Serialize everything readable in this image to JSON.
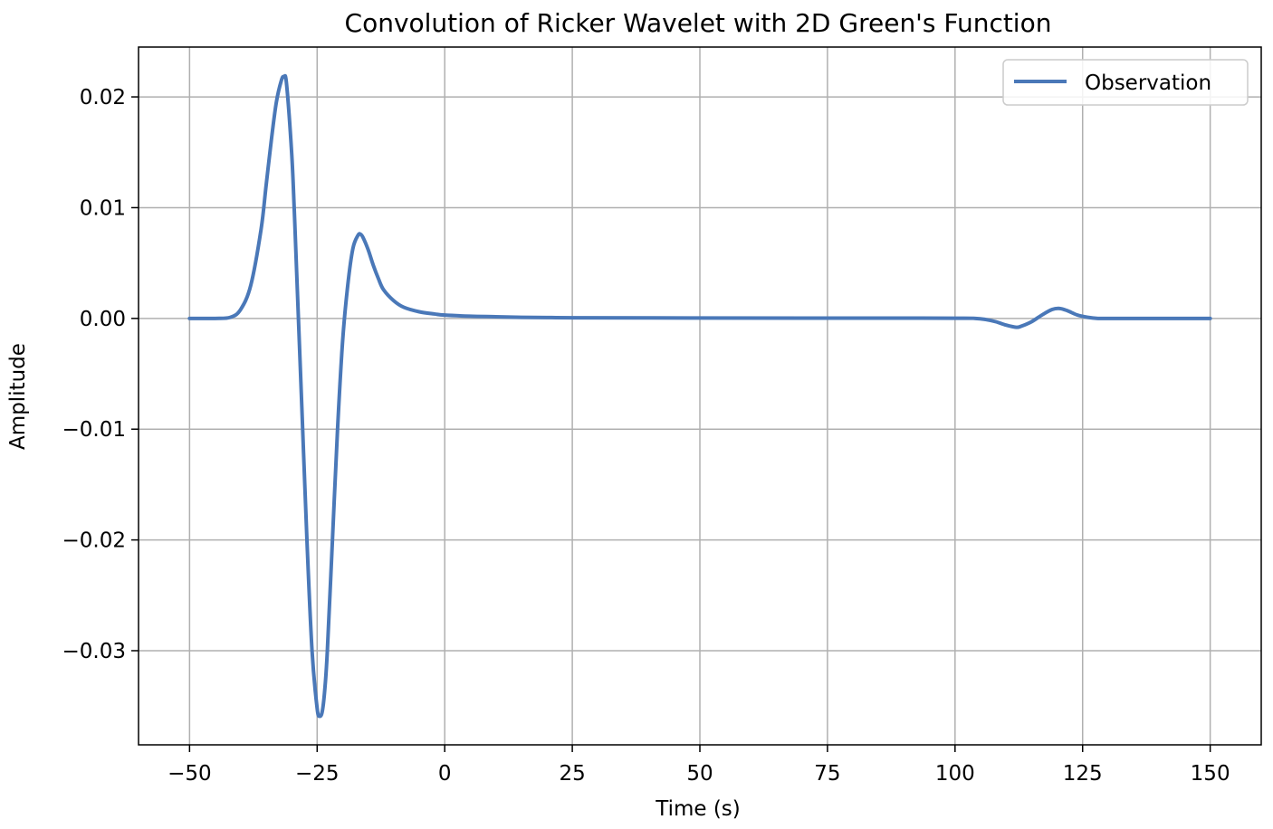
{
  "chart_data": {
    "type": "line",
    "title": "Convolution of Ricker Wavelet with 2D Green's Function",
    "xlabel": "Time (s)",
    "ylabel": "Amplitude",
    "xlim": [
      -60,
      160
    ],
    "ylim": [
      -0.0385,
      0.0245
    ],
    "xticks": [
      -50,
      -25,
      0,
      25,
      50,
      75,
      100,
      125,
      150
    ],
    "xtick_labels": [
      "−50",
      "−25",
      "0",
      "25",
      "50",
      "75",
      "100",
      "125",
      "150"
    ],
    "yticks": [
      0.02,
      0.01,
      0.0,
      -0.01,
      -0.02,
      -0.03
    ],
    "ytick_labels": [
      "0.02",
      "0.01",
      "0.00",
      "−0.01",
      "−0.02",
      "−0.03"
    ],
    "grid": true,
    "legend_position": "top-right",
    "series": [
      {
        "name": "Observation",
        "color": "#4a78b8",
        "x": [
          -50,
          -45,
          -42,
          -40,
          -38,
          -36,
          -35,
          -34,
          -33,
          -32,
          -31.5,
          -31,
          -30,
          -29.5,
          -29,
          -28,
          -27,
          -26,
          -25,
          -24.5,
          -24,
          -23.5,
          -23,
          -22,
          -21,
          -20,
          -19,
          -18,
          -17,
          -16.5,
          -16,
          -15,
          -14,
          -13,
          -12,
          -10,
          -8,
          -5,
          -2,
          0,
          5,
          10,
          15,
          20,
          25,
          50,
          75,
          100,
          104,
          106,
          108,
          110,
          112,
          113,
          115,
          117,
          119,
          120.5,
          122,
          124,
          126,
          128,
          130,
          135,
          140,
          145,
          150
        ],
        "y": [
          0.0,
          0.0,
          0.0001,
          0.0008,
          0.003,
          0.008,
          0.012,
          0.016,
          0.0195,
          0.0215,
          0.0218,
          0.0212,
          0.015,
          0.01,
          0.004,
          -0.008,
          -0.02,
          -0.03,
          -0.0352,
          -0.0359,
          -0.0355,
          -0.0335,
          -0.03,
          -0.02,
          -0.01,
          -0.002,
          0.003,
          0.0063,
          0.0075,
          0.0076,
          0.0073,
          0.0062,
          0.0048,
          0.0036,
          0.0026,
          0.0016,
          0.001,
          0.0006,
          0.0004,
          0.0003,
          0.0002,
          0.00015,
          0.0001,
          8e-05,
          6e-05,
          4e-05,
          3e-05,
          2e-05,
          0.0,
          -0.0001,
          -0.0003,
          -0.0006,
          -0.0008,
          -0.0007,
          -0.0003,
          0.0003,
          0.0008,
          0.0009,
          0.0007,
          0.0003,
          0.0001,
          0.0,
          0.0,
          0.0,
          0.0,
          0.0,
          0.0
        ]
      }
    ]
  }
}
